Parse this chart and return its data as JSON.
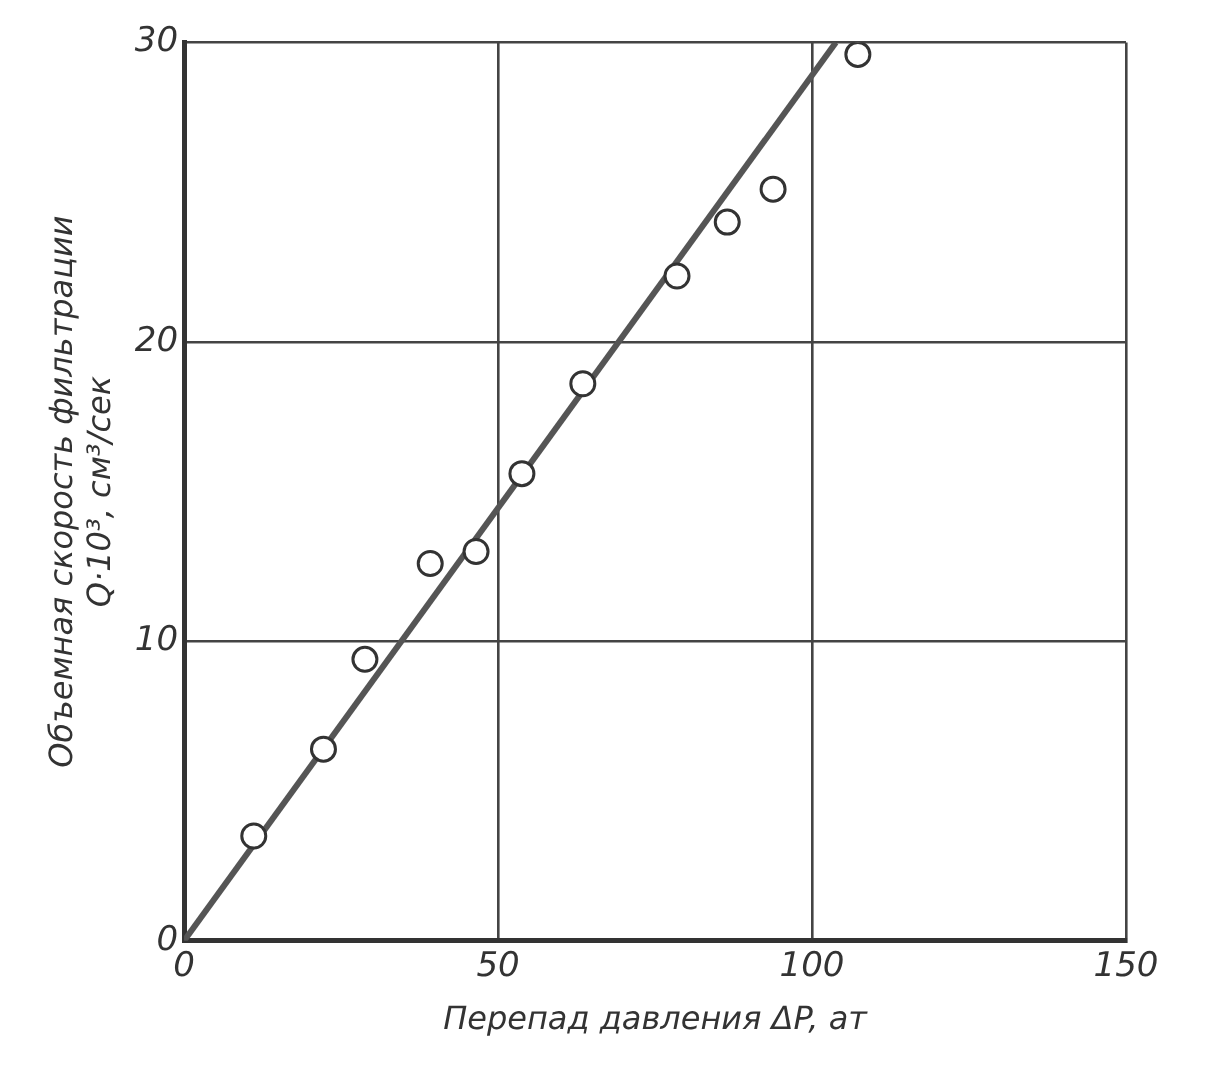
{
  "chart_data": {
    "type": "scatter",
    "xlabel": "Перепад давления ΔP, ат",
    "ylabel": "Объемная скорость фильтрации\nQ·10³, см³/сек",
    "x": [
      11.1,
      22.2,
      28.8,
      39.2,
      46.5,
      53.8,
      63.5,
      78.5,
      86.5,
      93.8,
      107.3
    ],
    "series": [
      {
        "color": "#333333",
        "values": [
          3.5,
          6.4,
          9.4,
          12.6,
          13.0,
          15.6,
          18.6,
          22.2,
          24.0,
          25.1,
          29.6
        ]
      },
      {
        "type": "line",
        "marker": "none",
        "color": "#555555",
        "x": [
          0,
          103.8
        ],
        "values": [
          0,
          30
        ]
      }
    ],
    "xlim": [
      0,
      150
    ],
    "xticks": [
      0,
      50,
      100,
      150
    ],
    "ylim": [
      0,
      30
    ],
    "yticks": [
      0,
      10,
      20,
      30
    ],
    "grid": true,
    "marker": "circle",
    "line_style": "solid"
  }
}
